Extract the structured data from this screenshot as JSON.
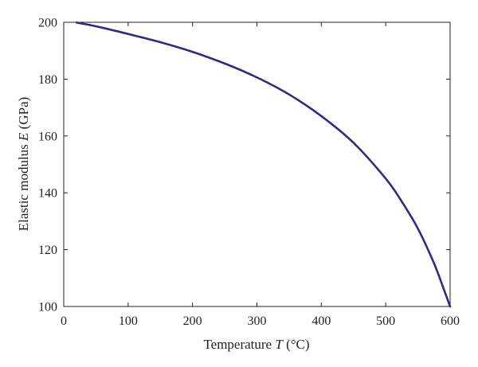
{
  "chart_data": {
    "type": "line",
    "xlabel": {
      "prefix": "Temperature ",
      "var": "T",
      "suffix": " (°C)"
    },
    "ylabel": {
      "prefix": "Elastic modulus ",
      "var": "E",
      "suffix": " (GPa)"
    },
    "xlim": [
      0,
      600
    ],
    "ylim": [
      100,
      200
    ],
    "xticks": [
      0,
      100,
      200,
      300,
      400,
      500,
      600
    ],
    "yticks": [
      100,
      120,
      140,
      160,
      180,
      200
    ],
    "grid": false,
    "series": [
      {
        "color": "#2e2a86",
        "x": [
          20,
          50,
          100,
          150,
          200,
          250,
          300,
          350,
          400,
          450,
          500,
          525,
          550,
          575,
          590,
          600
        ],
        "y": [
          199.9,
          198.6,
          195.9,
          193.0,
          189.6,
          185.5,
          180.6,
          174.6,
          167.0,
          157.6,
          145.0,
          136.9,
          127.4,
          115.2,
          106.2,
          100.0
        ]
      }
    ]
  }
}
